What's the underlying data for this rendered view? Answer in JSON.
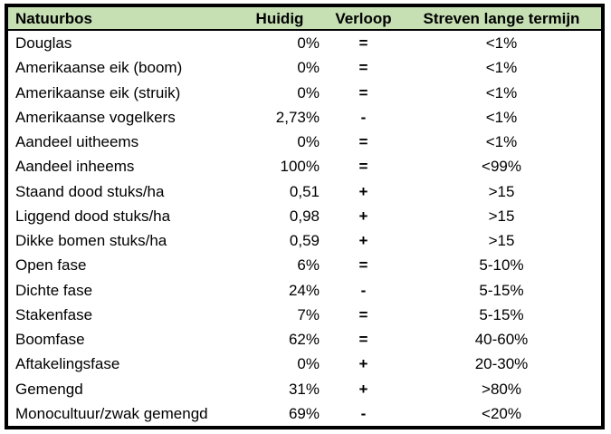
{
  "styles": {
    "header_bg": "#C6E0B4",
    "border_color": "#000000",
    "text_color": "#000000"
  },
  "table": {
    "columns": [
      {
        "label": "Natuurbos"
      },
      {
        "label": "Huidig"
      },
      {
        "label": "Verloop"
      },
      {
        "label": "Streven lange termijn"
      }
    ],
    "rows": [
      {
        "name": "Douglas",
        "huidig": "0%",
        "verloop": "=",
        "streven": "<1%"
      },
      {
        "name": "Amerikaanse eik (boom)",
        "huidig": "0%",
        "verloop": "=",
        "streven": "<1%"
      },
      {
        "name": "Amerikaanse eik (struik)",
        "huidig": "0%",
        "verloop": "=",
        "streven": "<1%"
      },
      {
        "name": "Amerikaanse vogelkers",
        "huidig": "2,73%",
        "verloop": "-",
        "streven": "<1%"
      },
      {
        "name": "Aandeel uitheems",
        "huidig": "0%",
        "verloop": "=",
        "streven": "<1%"
      },
      {
        "name": "Aandeel inheems",
        "huidig": "100%",
        "verloop": "=",
        "streven": "<99%"
      },
      {
        "name": "Staand dood stuks/ha",
        "huidig": "0,51",
        "verloop": "+",
        "streven": ">15"
      },
      {
        "name": "Liggend dood stuks/ha",
        "huidig": "0,98",
        "verloop": "+",
        "streven": ">15"
      },
      {
        "name": "Dikke bomen stuks/ha",
        "huidig": "0,59",
        "verloop": "+",
        "streven": ">15"
      },
      {
        "name": "Open fase",
        "huidig": "6%",
        "verloop": "=",
        "streven": "5-10%"
      },
      {
        "name": "Dichte fase",
        "huidig": "24%",
        "verloop": "-",
        "streven": "5-15%"
      },
      {
        "name": "Stakenfase",
        "huidig": "7%",
        "verloop": "=",
        "streven": "5-15%"
      },
      {
        "name": "Boomfase",
        "huidig": "62%",
        "verloop": "=",
        "streven": "40-60%"
      },
      {
        "name": "Aftakelingsfase",
        "huidig": "0%",
        "verloop": "+",
        "streven": "20-30%"
      },
      {
        "name": "Gemengd",
        "huidig": "31%",
        "verloop": "+",
        "streven": ">80%"
      },
      {
        "name": "Monocultuur/zwak gemengd",
        "huidig": "69%",
        "verloop": "-",
        "streven": "<20%"
      }
    ]
  },
  "chart_data": {
    "type": "table",
    "title": "Natuurbos",
    "columns": [
      "Natuurbos",
      "Huidig",
      "Verloop",
      "Streven lange termijn"
    ],
    "rows": [
      [
        "Douglas",
        "0%",
        "=",
        "<1%"
      ],
      [
        "Amerikaanse eik (boom)",
        "0%",
        "=",
        "<1%"
      ],
      [
        "Amerikaanse eik (struik)",
        "0%",
        "=",
        "<1%"
      ],
      [
        "Amerikaanse vogelkers",
        "2,73%",
        "-",
        "<1%"
      ],
      [
        "Aandeel uitheems",
        "0%",
        "=",
        "<1%"
      ],
      [
        "Aandeel inheems",
        "100%",
        "=",
        "<99%"
      ],
      [
        "Staand dood stuks/ha",
        "0,51",
        "+",
        ">15"
      ],
      [
        "Liggend dood stuks/ha",
        "0,98",
        "+",
        ">15"
      ],
      [
        "Dikke bomen stuks/ha",
        "0,59",
        "+",
        ">15"
      ],
      [
        "Open fase",
        "6%",
        "=",
        "5-10%"
      ],
      [
        "Dichte fase",
        "24%",
        "-",
        "5-15%"
      ],
      [
        "Stakenfase",
        "7%",
        "=",
        "5-15%"
      ],
      [
        "Boomfase",
        "62%",
        "=",
        "40-60%"
      ],
      [
        "Aftakelingsfase",
        "0%",
        "+",
        "20-30%"
      ],
      [
        "Gemengd",
        "31%",
        "+",
        ">80%"
      ],
      [
        "Monocultuur/zwak gemengd",
        "69%",
        "-",
        "<20%"
      ]
    ],
    "layout": {
      "header_background": "#C6E0B4",
      "outer_border": "thick solid black",
      "header_separator": "thin solid black",
      "huidig_align": "right",
      "verloop_align": "center",
      "streven_align": "center"
    }
  }
}
